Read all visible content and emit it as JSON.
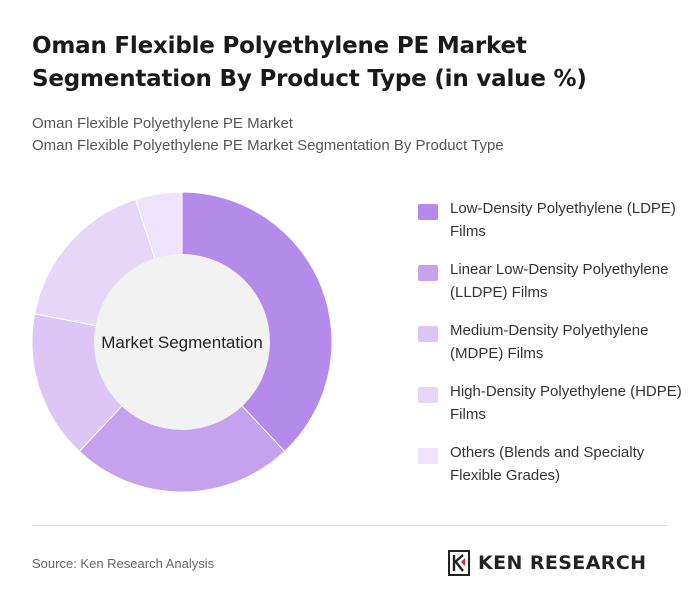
{
  "header": {
    "title": "Oman Flexible Polyethylene PE Market Segmentation By Product Type (in value %)",
    "subtitle_line1": "Oman Flexible Polyethylene PE Market",
    "subtitle_line2": "Oman Flexible Polyethylene PE Market Segmentation By Product Type"
  },
  "chart_data": {
    "type": "pie",
    "variant": "donut",
    "center_label": "Market Segmentation",
    "legend_position": "right",
    "categories": [
      "Low-Density Polyethylene (LDPE) Films",
      "Linear Low-Density Polyethylene (LLDPE) Films",
      "Medium-Density Polyethylene (MDPE) Films",
      "High-Density Polyethylene (HDPE) Films",
      "Others (Blends and Specialty Flexible Grades)"
    ],
    "values": [
      38,
      24,
      16,
      17,
      5
    ],
    "colors": [
      "#b48aea",
      "#c4a2ee",
      "#dcc6f5",
      "#e6d6f8",
      "#ede3fa"
    ]
  },
  "footer": {
    "source": "Source: Ken Research Analysis",
    "logo_text": "KEN RESEARCH",
    "logo_icon": "ken-research-logo-icon"
  }
}
